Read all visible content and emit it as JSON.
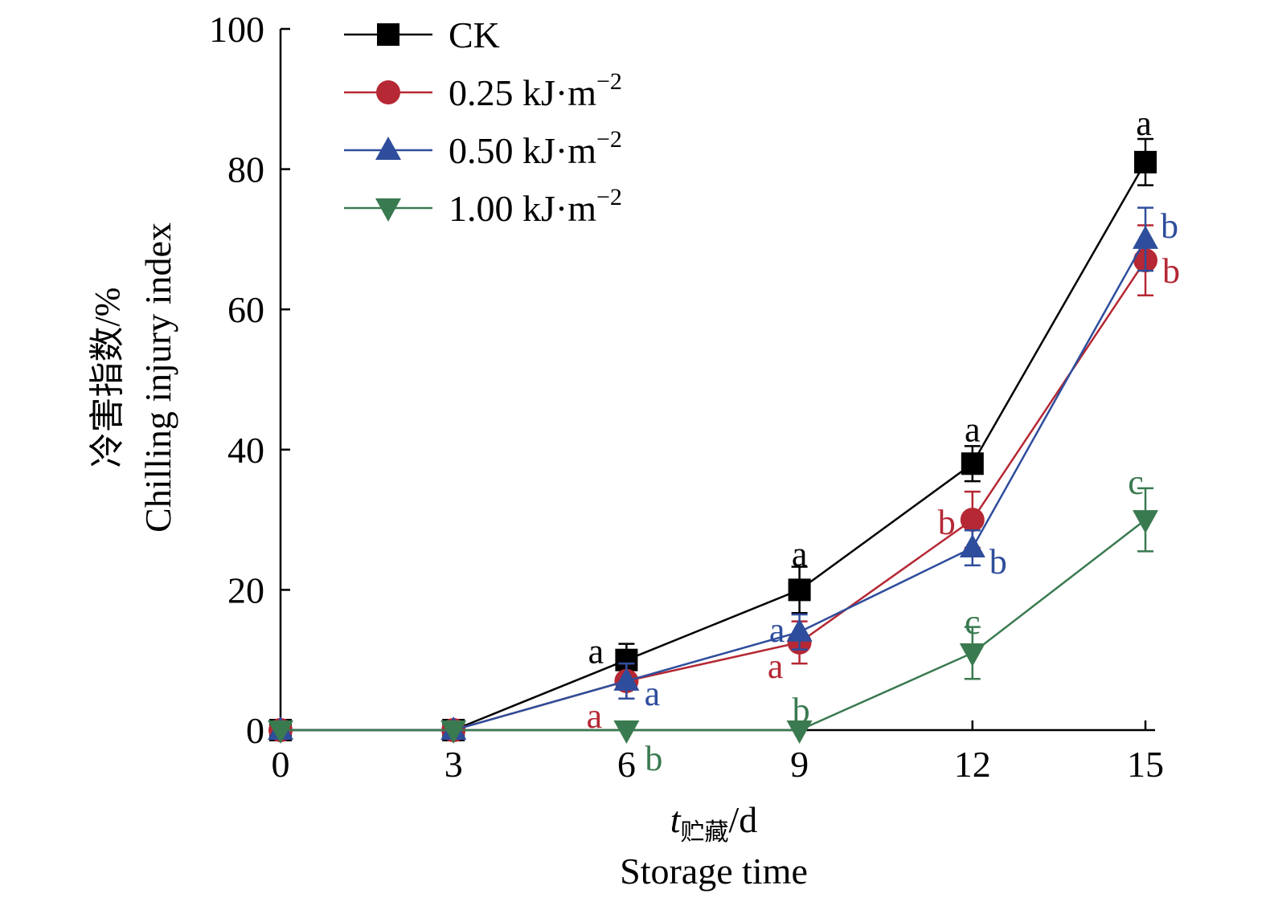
{
  "chart_data": {
    "type": "line",
    "title": "",
    "x": [
      0,
      3,
      6,
      9,
      12,
      15
    ],
    "xticks": [
      "0",
      "3",
      "6",
      "9",
      "12",
      "15"
    ],
    "yticks": [
      "0",
      "20",
      "40",
      "60",
      "80",
      "100"
    ],
    "xlim": [
      0,
      15
    ],
    "ylim": [
      0,
      100
    ],
    "xlabel": {
      "symbol": "t",
      "subscript": "贮藏",
      "unit": "/d",
      "english": "Storage time"
    },
    "ylabel": {
      "chinese": "冷害指数/%",
      "english": "Chilling injury index"
    },
    "legend": {
      "position": "top-left",
      "unit_text": " kJ·m",
      "unit_exp": "−2"
    },
    "series": [
      {
        "name": "CK",
        "legend_main": "CK",
        "legend_unit": false,
        "color": "#000000",
        "marker": "square",
        "values": [
          0,
          0,
          10,
          20,
          38,
          81
        ],
        "errors": [
          0,
          0,
          2.3,
          3.3,
          2.5,
          3.3
        ],
        "labels": [
          "",
          "",
          "a",
          "a",
          "a",
          "a"
        ]
      },
      {
        "name": "0.25 kJ·m−2",
        "legend_main": "0.25",
        "legend_unit": true,
        "color": "#b52834",
        "marker": "circle",
        "values": [
          0,
          0,
          7,
          12.5,
          30,
          67
        ],
        "errors": [
          0,
          0,
          2.5,
          3,
          4,
          5
        ],
        "labels": [
          "",
          "",
          "a",
          "a",
          "b",
          "b"
        ]
      },
      {
        "name": "0.50 kJ·m−2",
        "legend_main": "0.50",
        "legend_unit": true,
        "color": "#2e4d9c",
        "marker": "triangle-up",
        "values": [
          0,
          0,
          7,
          14,
          26,
          70
        ],
        "errors": [
          0,
          0,
          2.5,
          2.5,
          2.5,
          4.5
        ],
        "labels": [
          "",
          "",
          "a",
          "a",
          "b",
          "b"
        ]
      },
      {
        "name": "1.00 kJ·m−2",
        "legend_main": "1.00",
        "legend_unit": true,
        "color": "#3a7a50",
        "marker": "triangle-down",
        "values": [
          0,
          0,
          0,
          0,
          11,
          30
        ],
        "errors": [
          0,
          0,
          0,
          0,
          3.7,
          4.5
        ],
        "labels": [
          "",
          "",
          "b",
          "b",
          "c",
          "c"
        ]
      }
    ]
  }
}
